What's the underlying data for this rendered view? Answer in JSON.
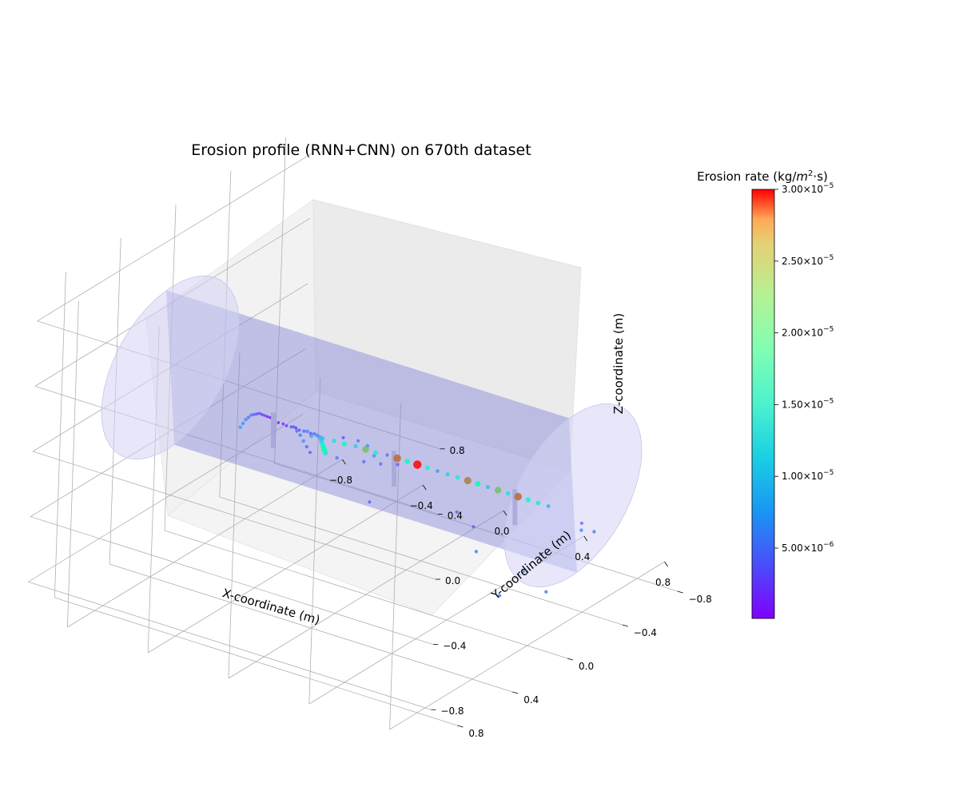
{
  "chart_data": {
    "type": "scatter",
    "title": "Erosion profile (RNN+CNN) on 670th dataset",
    "xlabel": "X-coordinate (m)",
    "ylabel": "Y-coordinate (m)",
    "zlabel": "Z-coordinate (m)",
    "xlim": [
      -1.0,
      1.0
    ],
    "ylim": [
      -1.0,
      1.0
    ],
    "zlim": [
      -1.0,
      1.0
    ],
    "x_ticks": [
      "−0.8",
      "−0.4",
      "0.0",
      "0.4",
      "0.8"
    ],
    "y_ticks": [
      "−0.8",
      "−0.4",
      "0.0",
      "0.4",
      "0.8"
    ],
    "z_ticks": [
      "−0.8",
      "−0.4",
      "0.0",
      "0.4",
      "0.8"
    ],
    "grid": true,
    "pipe": {
      "axis": "x",
      "radius": 0.5,
      "x_range": [
        -1.0,
        1.0
      ],
      "color": "#7d7dd9"
    },
    "colorbar": {
      "label": "Erosion rate (kg/m²·s)",
      "label_parts": [
        "Erosion rate (kg/",
        "m",
        "2",
        "·s)"
      ],
      "colormap": "rainbow",
      "min": 1e-07,
      "max": 3e-05,
      "ticks": [
        {
          "value": 3e-05,
          "mantissa": "3.00",
          "exponent": "−5"
        },
        {
          "value": 2.5e-05,
          "mantissa": "2.50",
          "exponent": "−5"
        },
        {
          "value": 2e-05,
          "mantissa": "2.00",
          "exponent": "−5"
        },
        {
          "value": 1.5e-05,
          "mantissa": "1.50",
          "exponent": "−5"
        },
        {
          "value": 1e-05,
          "mantissa": "1.00",
          "exponent": "−5"
        },
        {
          "value": 5e-06,
          "mantissa": "5.00",
          "exponent": "−6"
        }
      ]
    },
    "points": [
      [
        -0.8,
        -0.45,
        -0.46,
        1.2e-06
      ],
      [
        -0.78,
        -0.4,
        -0.42,
        1.5e-06
      ],
      [
        -0.76,
        -0.35,
        -0.38,
        2e-06
      ],
      [
        -0.74,
        -0.3,
        -0.34,
        2.5e-06
      ],
      [
        -0.72,
        -0.25,
        -0.3,
        3e-06
      ],
      [
        -0.7,
        -0.2,
        -0.27,
        3.5e-06
      ],
      [
        -0.68,
        -0.15,
        -0.24,
        4e-06
      ],
      [
        -0.66,
        -0.1,
        -0.21,
        4.5e-06
      ],
      [
        -0.64,
        -0.05,
        -0.19,
        5e-06
      ],
      [
        -0.62,
        0.0,
        -0.17,
        5.5e-06
      ],
      [
        -0.6,
        0.05,
        -0.16,
        6e-06
      ],
      [
        -0.58,
        0.1,
        -0.15,
        7e-06
      ],
      [
        -0.77,
        -0.47,
        -0.49,
        1e-06
      ],
      [
        -0.74,
        -0.46,
        -0.48,
        1.4e-06
      ],
      [
        -0.71,
        -0.44,
        -0.47,
        2.2e-06
      ],
      [
        -0.68,
        -0.43,
        -0.46,
        3e-06
      ],
      [
        -0.65,
        -0.42,
        -0.45,
        2.6e-06
      ],
      [
        -0.62,
        -0.4,
        -0.44,
        3.8e-06
      ],
      [
        -0.59,
        -0.39,
        -0.43,
        4.2e-06
      ],
      [
        -0.56,
        -0.37,
        -0.41,
        5.1e-06
      ],
      [
        -0.53,
        -0.35,
        -0.4,
        3.3e-06
      ],
      [
        -0.5,
        -0.33,
        -0.38,
        4.8e-06
      ],
      [
        -0.47,
        -0.3,
        -0.36,
        6.2e-06
      ],
      [
        -0.44,
        -0.27,
        -0.34,
        5.4e-06
      ],
      [
        -0.41,
        -0.24,
        -0.32,
        7.5e-06
      ],
      [
        -0.38,
        -0.2,
        -0.3,
        8.1e-06
      ],
      [
        -0.35,
        -0.16,
        -0.28,
        9e-06
      ],
      [
        -0.32,
        -0.12,
        -0.26,
        1.05e-05
      ],
      [
        -0.29,
        -0.08,
        -0.24,
        1.2e-05
      ],
      [
        -0.26,
        -0.04,
        -0.22,
        1.35e-05
      ],
      [
        -0.23,
        0.0,
        -0.2,
        1.6e-05
      ],
      [
        -0.2,
        0.04,
        -0.18,
        1.3e-05
      ],
      [
        -0.17,
        0.08,
        -0.16,
        1.1e-05
      ],
      [
        -0.45,
        -0.1,
        -0.2,
        3.5e-06
      ],
      [
        -0.4,
        -0.05,
        -0.18,
        4.5e-06
      ],
      [
        -0.35,
        0.0,
        -0.16,
        5.5e-06
      ],
      [
        -0.3,
        0.05,
        -0.15,
        6e-06
      ],
      [
        -0.25,
        0.1,
        -0.14,
        4e-06
      ],
      [
        -0.2,
        0.15,
        -0.13,
        3e-06
      ],
      [
        -0.1,
        0.1,
        -0.15,
        5e-06
      ],
      [
        0.0,
        0.05,
        -0.16,
        4.4e-06
      ],
      [
        0.2,
        0.3,
        -0.2,
        4.2e-06
      ],
      [
        0.05,
        0.0,
        -0.18,
        4.8e-06
      ],
      [
        0.1,
        -0.05,
        -0.19,
        3.9e-06
      ],
      [
        -0.05,
        -0.1,
        -0.22,
        6.4e-06
      ],
      [
        -0.15,
        -0.2,
        -0.25,
        5.6e-06
      ],
      [
        -0.25,
        -0.28,
        -0.3,
        4.6e-06
      ],
      [
        -0.35,
        -0.32,
        -0.34,
        3.6e-06
      ],
      [
        -0.6,
        -0.46,
        -0.5,
        6.5e-06
      ],
      [
        -0.55,
        -0.47,
        -0.5,
        8e-06
      ],
      [
        -0.5,
        -0.48,
        -0.5,
        1e-05
      ],
      [
        -0.45,
        -0.48,
        -0.5,
        1.3e-05
      ],
      [
        -0.4,
        -0.49,
        -0.5,
        9e-06
      ],
      [
        -0.35,
        -0.49,
        -0.5,
        2.2e-05
      ],
      [
        -0.3,
        -0.49,
        -0.5,
        1.1e-05
      ],
      [
        -0.25,
        -0.5,
        -0.5,
        4.5e-06
      ],
      [
        -0.2,
        -0.5,
        -0.5,
        2.6e-05
      ],
      [
        -0.15,
        -0.5,
        -0.5,
        1.4e-05
      ],
      [
        -0.1,
        -0.5,
        -0.5,
        3e-05
      ],
      [
        -0.05,
        -0.5,
        -0.5,
        1.2e-05
      ],
      [
        0.0,
        -0.5,
        -0.5,
        6e-06
      ],
      [
        0.05,
        -0.5,
        -0.5,
        9e-06
      ],
      [
        0.1,
        -0.5,
        -0.5,
        1.1e-05
      ],
      [
        0.15,
        -0.5,
        -0.5,
        2.5e-05
      ],
      [
        0.2,
        -0.5,
        -0.5,
        1.5e-05
      ],
      [
        0.25,
        -0.5,
        -0.5,
        8e-06
      ],
      [
        0.3,
        -0.5,
        -0.5,
        2.2e-05
      ],
      [
        0.35,
        -0.5,
        -0.5,
        1e-05
      ],
      [
        0.4,
        -0.5,
        -0.5,
        2.6e-05
      ],
      [
        0.45,
        -0.5,
        -0.5,
        1.3e-05
      ],
      [
        0.5,
        -0.5,
        -0.5,
        1.1e-05
      ],
      [
        0.55,
        -0.5,
        -0.5,
        7e-06
      ],
      [
        0.3,
        -0.2,
        -0.48,
        4e-06
      ],
      [
        0.45,
        -0.1,
        -0.46,
        3.5e-06
      ],
      [
        0.6,
        0.1,
        -0.45,
        5e-06
      ],
      [
        0.65,
        -0.6,
        -0.66,
        6e-06
      ],
      [
        0.7,
        -0.62,
        -0.66,
        5e-06
      ],
      [
        0.75,
        -0.45,
        -0.5,
        4.5e-06
      ],
      [
        0.9,
        0.2,
        -0.4,
        5.5e-06
      ],
      [
        0.92,
        0.4,
        -0.44,
        4.8e-06
      ],
      [
        0.95,
        0.1,
        -0.56,
        5.2e-06
      ]
    ]
  }
}
